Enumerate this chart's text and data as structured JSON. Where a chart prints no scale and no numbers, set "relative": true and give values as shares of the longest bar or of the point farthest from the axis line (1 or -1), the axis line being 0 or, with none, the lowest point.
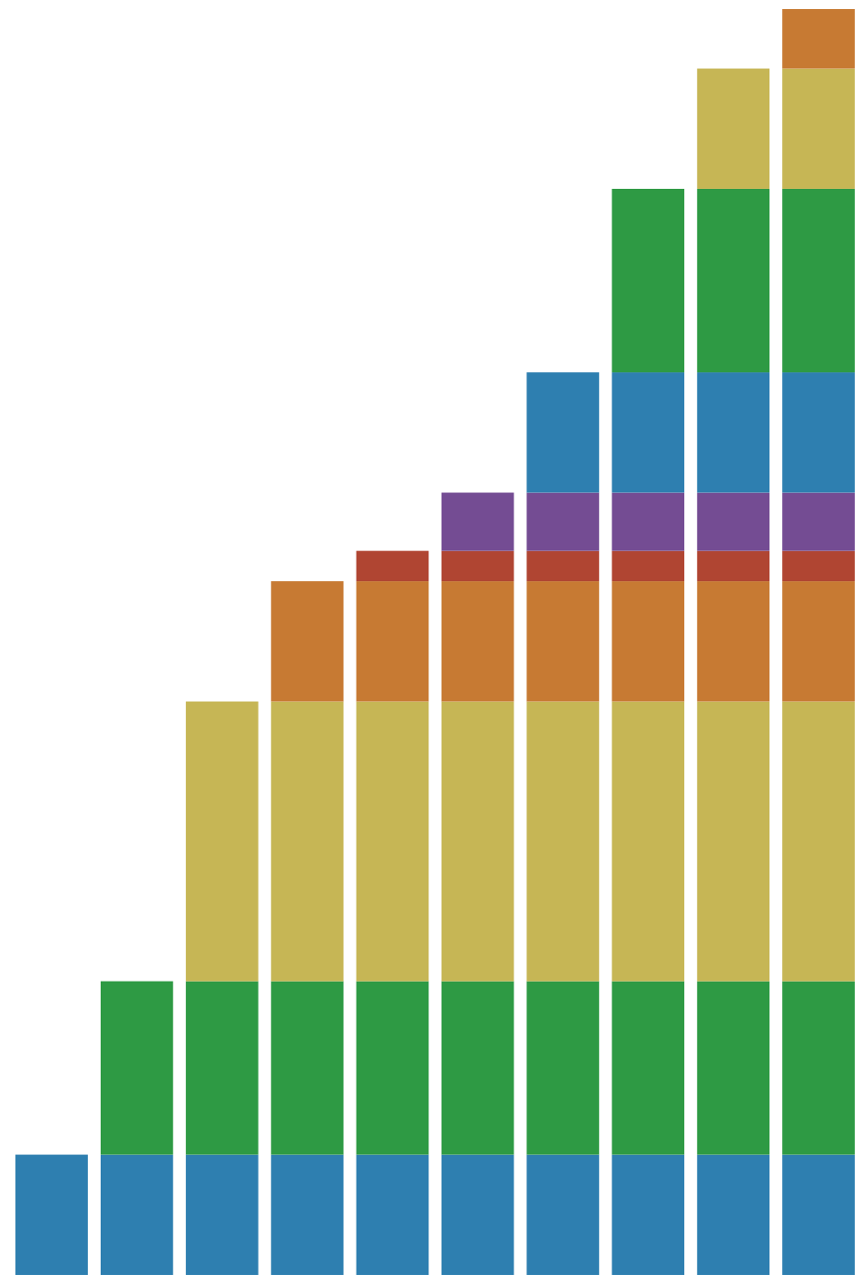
{
  "chart_data": {
    "type": "bar",
    "stacked": true,
    "relative": true,
    "categories": [
      null,
      null,
      null,
      null,
      null,
      null,
      null,
      null,
      null,
      null
    ],
    "series": [
      {
        "color": "#2e7fb0",
        "values": [
          0.095,
          0.095,
          0.095,
          0.095,
          0.095,
          0.095,
          0.095,
          0.095,
          0.095,
          0.095
        ]
      },
      {
        "color": "#2e9a44",
        "values": [
          null,
          0.137,
          0.137,
          0.137,
          0.137,
          0.137,
          0.137,
          0.137,
          0.137,
          0.137
        ]
      },
      {
        "color": "#c6b655",
        "values": [
          null,
          null,
          0.221,
          0.221,
          0.221,
          0.221,
          0.221,
          0.221,
          0.221,
          0.221
        ]
      },
      {
        "color": "#c77a33",
        "values": [
          null,
          null,
          null,
          0.095,
          0.095,
          0.095,
          0.095,
          0.095,
          0.095,
          0.095
        ]
      },
      {
        "color": "#b04532",
        "values": [
          null,
          null,
          null,
          null,
          0.024,
          0.024,
          0.024,
          0.024,
          0.024,
          0.024
        ]
      },
      {
        "color": "#744c93",
        "values": [
          null,
          null,
          null,
          null,
          null,
          0.046,
          0.046,
          0.046,
          0.046,
          0.046
        ]
      },
      {
        "color": "#2e7fb0",
        "values": [
          null,
          null,
          null,
          null,
          null,
          null,
          0.095,
          0.095,
          0.095,
          0.095
        ]
      },
      {
        "color": "#2e9a44",
        "values": [
          null,
          null,
          null,
          null,
          null,
          null,
          null,
          0.145,
          0.145,
          0.145
        ]
      },
      {
        "color": "#c6b655",
        "values": [
          null,
          null,
          null,
          null,
          null,
          null,
          null,
          null,
          0.095,
          0.095
        ]
      },
      {
        "color": "#c77a33",
        "values": [
          null,
          null,
          null,
          null,
          null,
          null,
          null,
          null,
          null,
          0.047
        ]
      }
    ]
  }
}
